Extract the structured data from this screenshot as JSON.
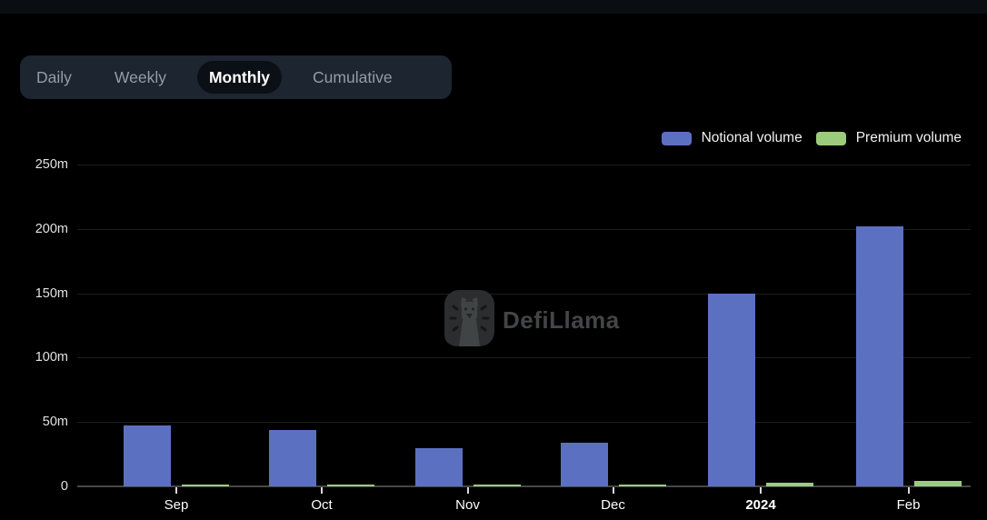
{
  "tabs": {
    "items": [
      {
        "label": "Daily",
        "active": false
      },
      {
        "label": "Weekly",
        "active": false
      },
      {
        "label": "Monthly",
        "active": true
      },
      {
        "label": "Cumulative",
        "active": false
      }
    ],
    "active": "Monthly"
  },
  "legend": [
    {
      "label": "Notional volume",
      "color": "#5c70c2"
    },
    {
      "label": "Premium volume",
      "color": "#9ccb7d"
    }
  ],
  "watermark": {
    "text": "DefiLlama"
  },
  "chart_data": {
    "type": "bar",
    "categories": [
      "Sep",
      "Oct",
      "Nov",
      "Dec",
      "2024",
      "Feb"
    ],
    "bold_tick": "2024",
    "series": [
      {
        "name": "Notional volume",
        "color": "#5c70c2",
        "values": [
          47,
          43.5,
          30,
          34,
          150,
          202
        ]
      },
      {
        "name": "Premium volume",
        "color": "#9ccb7d",
        "values": [
          1.3,
          1.2,
          1.4,
          1.5,
          2.7,
          4.2
        ]
      }
    ],
    "unit": "m",
    "y_ticks": [
      {
        "label": "250m",
        "value": 250
      },
      {
        "label": "200m",
        "value": 200
      },
      {
        "label": "150m",
        "value": 150
      },
      {
        "label": "100m",
        "value": 100
      },
      {
        "label": "50m",
        "value": 50
      },
      {
        "label": "0",
        "value": 0
      }
    ],
    "ylim": [
      0,
      250
    ],
    "grid": true,
    "legend_position": "top-right"
  }
}
